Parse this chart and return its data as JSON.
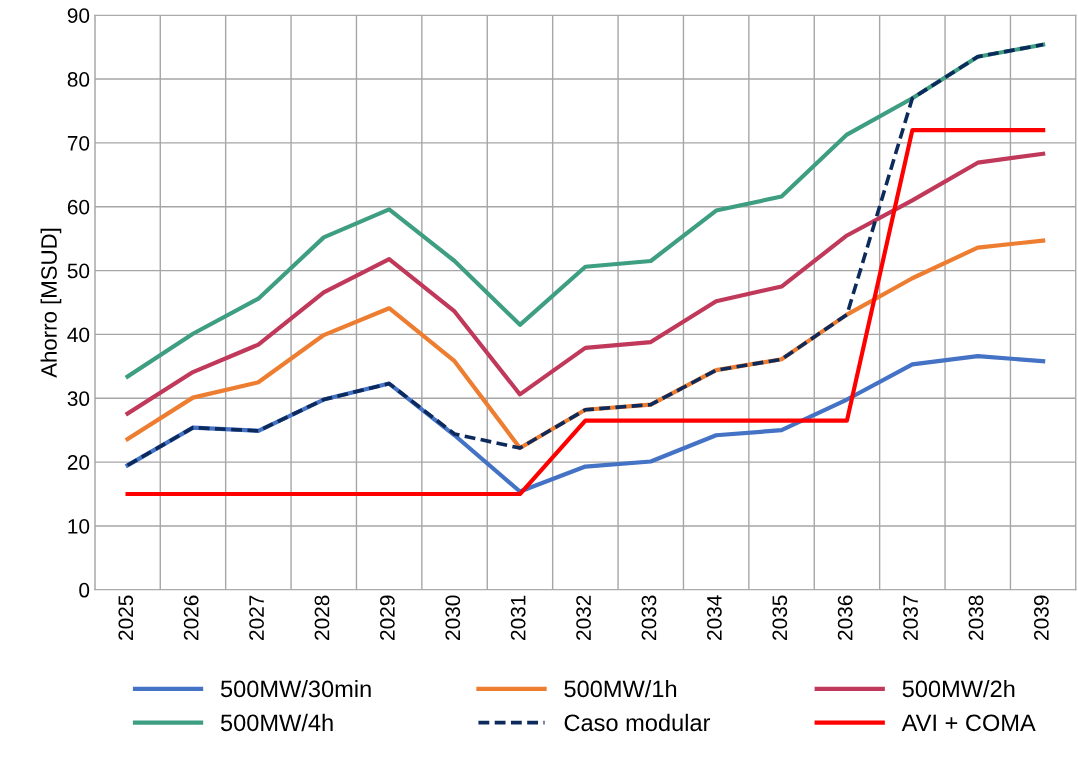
{
  "chart_data": {
    "type": "line",
    "ylabel": "Ahorro [MSUD]",
    "categories": [
      "2025",
      "2026",
      "2027",
      "2028",
      "2029",
      "2030",
      "2031",
      "2032",
      "2033",
      "2034",
      "2035",
      "2036",
      "2037",
      "2038",
      "2039"
    ],
    "series": [
      {
        "name": "500MW/30min",
        "color": "#4472c4",
        "values": [
          19.5,
          25.4,
          24.9,
          29.8,
          32.3,
          24.2,
          15.4,
          19.3,
          20.1,
          24.2,
          25.0,
          29.8,
          35.3,
          36.6,
          35.8
        ]
      },
      {
        "name": "500MW/1h",
        "color": "#ed7d31",
        "values": [
          23.6,
          30.1,
          32.5,
          39.9,
          44.1,
          35.8,
          22.2,
          28.2,
          29.0,
          34.4,
          36.1,
          43.1,
          48.8,
          53.6,
          54.7
        ]
      },
      {
        "name": "500MW/2h",
        "color": "#c0395a",
        "values": [
          27.6,
          34.1,
          38.4,
          46.6,
          51.8,
          43.6,
          30.6,
          37.9,
          38.8,
          45.2,
          47.5,
          55.5,
          61.0,
          66.9,
          68.3
        ]
      },
      {
        "name": "500MW/4h",
        "color": "#3e9e82",
        "values": [
          33.4,
          40.1,
          45.6,
          55.2,
          59.6,
          51.5,
          41.5,
          50.6,
          51.5,
          59.4,
          61.6,
          71.3,
          77.0,
          83.5,
          85.4
        ]
      },
      {
        "name": "Caso modular",
        "color": "#0d2a5c",
        "line_style": "dashed",
        "values": [
          19.5,
          25.4,
          24.9,
          29.8,
          32.3,
          24.4,
          22.2,
          28.2,
          29.0,
          34.4,
          36.1,
          43.1,
          77.0,
          83.5,
          85.4
        ]
      },
      {
        "name": "AVI + COMA",
        "color": "#ff0000",
        "values": [
          15,
          15,
          15,
          15,
          15,
          15,
          15,
          26.5,
          26.5,
          26.5,
          26.5,
          26.5,
          72,
          72,
          72
        ]
      }
    ],
    "ylim": [
      0,
      90
    ],
    "yticks": [
      0,
      10,
      20,
      30,
      40,
      50,
      60,
      70,
      80,
      90
    ],
    "grid": true,
    "legend": "bottom",
    "marker": "none",
    "line_style": "solid"
  }
}
